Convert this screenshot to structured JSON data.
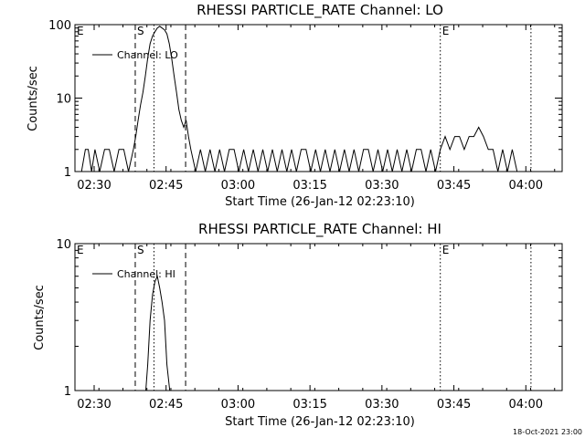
{
  "footer": {
    "timestamp": "18-Oct-2021 23:00"
  },
  "chart_data": [
    {
      "type": "line",
      "title": "RHESSI PARTICLE_RATE Channel: LO",
      "xlabel": "Start Time (26-Jan-12 02:23:10)",
      "ylabel": "Counts/sec",
      "yscale": "log",
      "xlim_minutes": [
        2.83,
        104.4
      ],
      "x_tick_labels": [
        "02:30",
        "02:45",
        "03:00",
        "03:15",
        "03:30",
        "03:45",
        "04:00"
      ],
      "x_tick_minutes": [
        6.83,
        21.83,
        36.83,
        51.83,
        66.83,
        81.83,
        96.83
      ],
      "ylim": [
        1,
        100
      ],
      "y_tick_labels": [
        "1",
        "10",
        "100"
      ],
      "y_tick_values": [
        1,
        10,
        100
      ],
      "legend": {
        "label": "Channel: LO",
        "placement": "top-left"
      },
      "markers": [
        {
          "label": "E",
          "minutes": 2.83,
          "style": "solid"
        },
        {
          "label": "S",
          "minutes": 15.4,
          "style": "dashed"
        },
        {
          "label": "",
          "minutes": 19.3,
          "style": "dotted"
        },
        {
          "label": "",
          "minutes": 25.9,
          "style": "dashed"
        },
        {
          "label": "E",
          "minutes": 79.0,
          "style": "dotted"
        },
        {
          "label": "",
          "minutes": 97.9,
          "style": "dotted"
        }
      ],
      "series": [
        {
          "x_minutes": [
            3.2,
            4.2,
            5.0,
            5.6,
            6.3,
            7.0,
            8.0,
            9.0,
            10.0,
            11.0,
            12.0,
            13.0,
            14.0,
            15.0,
            15.5,
            16.0,
            16.5,
            17.0,
            17.5,
            18.0,
            18.5,
            19.0,
            19.5,
            20.0,
            20.5,
            21.0,
            21.5,
            22.0,
            22.5,
            23.0,
            23.5,
            24.0,
            24.5,
            25.0,
            25.5,
            26.0,
            26.5,
            27.0,
            28.0,
            29.0,
            30.0,
            31.0,
            32.0,
            33.0,
            34.0,
            35.0,
            36.0,
            37.0,
            38.0,
            39.0,
            40.0,
            41.0,
            42.0,
            43.0,
            44.0,
            45.0,
            46.0,
            47.0,
            48.0,
            49.0,
            50.0,
            51.0,
            52.0,
            53.0,
            54.0,
            55.0,
            56.0,
            57.0,
            58.0,
            59.0,
            60.0,
            61.0,
            62.0,
            63.0,
            64.0,
            65.0,
            66.0,
            67.0,
            68.0,
            69.0,
            70.0,
            71.0,
            72.0,
            73.0,
            74.0,
            75.0,
            76.0,
            77.0,
            78.0,
            79.0,
            80.0,
            81.0,
            82.0,
            83.0,
            84.0,
            85.0,
            86.0,
            87.0,
            88.0,
            89.0,
            90.0,
            91.0,
            92.0,
            93.0,
            94.0,
            95.0,
            96.0,
            97.0
          ],
          "y": [
            1,
            1,
            2,
            2,
            1,
            2,
            1,
            2,
            2,
            1,
            2,
            2,
            1,
            2,
            3,
            5,
            8,
            12,
            20,
            35,
            55,
            70,
            80,
            90,
            95,
            90,
            85,
            75,
            55,
            35,
            20,
            12,
            7,
            5,
            4,
            5,
            3,
            2,
            1,
            2,
            1,
            2,
            1,
            2,
            1,
            2,
            2,
            1,
            2,
            1,
            2,
            1,
            2,
            1,
            2,
            1,
            2,
            1,
            2,
            1,
            2,
            2,
            1,
            2,
            1,
            2,
            1,
            2,
            1,
            2,
            1,
            2,
            1,
            2,
            2,
            1,
            2,
            1,
            2,
            1,
            2,
            1,
            2,
            1,
            2,
            2,
            1,
            2,
            1,
            2,
            3,
            2,
            3,
            3,
            2,
            3,
            3,
            4,
            3,
            2,
            2,
            1,
            2,
            1,
            2,
            1,
            1,
            1
          ]
        }
      ]
    },
    {
      "type": "line",
      "title": "RHESSI PARTICLE_RATE Channel: HI",
      "xlabel": "Start Time (26-Jan-12 02:23:10)",
      "ylabel": "Counts/sec",
      "yscale": "log",
      "xlim_minutes": [
        2.83,
        104.4
      ],
      "x_tick_labels": [
        "02:30",
        "02:45",
        "03:00",
        "03:15",
        "03:30",
        "03:45",
        "04:00"
      ],
      "x_tick_minutes": [
        6.83,
        21.83,
        36.83,
        51.83,
        66.83,
        81.83,
        96.83
      ],
      "ylim": [
        1,
        10
      ],
      "y_tick_labels": [
        "1",
        "10"
      ],
      "y_tick_values": [
        1,
        10
      ],
      "legend": {
        "label": "Channel: HI",
        "placement": "top-left"
      },
      "markers": [
        {
          "label": "E",
          "minutes": 2.83,
          "style": "solid"
        },
        {
          "label": "S",
          "minutes": 15.4,
          "style": "dashed"
        },
        {
          "label": "",
          "minutes": 19.3,
          "style": "dotted"
        },
        {
          "label": "",
          "minutes": 25.9,
          "style": "dashed"
        },
        {
          "label": "E",
          "minutes": 79.0,
          "style": "dotted"
        },
        {
          "label": "",
          "minutes": 97.9,
          "style": "dotted"
        }
      ],
      "series": [
        {
          "x_minutes": [
            17.6,
            18.0,
            18.5,
            19.0,
            19.5,
            20.0,
            20.5,
            21.0,
            21.5,
            22.0,
            22.6
          ],
          "y": [
            1.0,
            1.5,
            3.0,
            4.5,
            5.5,
            6.0,
            5.0,
            4.0,
            3.0,
            1.5,
            1.0
          ]
        }
      ]
    }
  ]
}
